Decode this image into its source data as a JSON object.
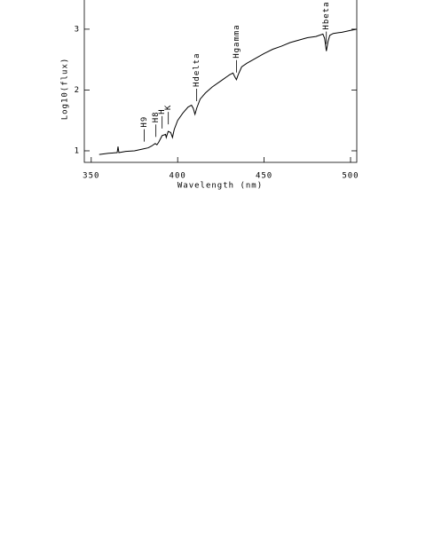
{
  "chart_data": {
    "type": "line",
    "xlabel": "Wavelength (nm)",
    "ylabel": "Log10(flux)",
    "x": [
      354.6,
      360,
      365,
      365.5,
      366,
      370,
      375,
      380,
      383,
      385,
      387,
      388,
      389,
      391,
      393,
      393.4,
      394.5,
      396,
      397,
      398,
      400,
      403,
      406,
      408,
      409,
      410,
      411,
      413,
      416,
      420,
      425,
      430,
      432,
      433,
      434,
      435,
      437,
      440,
      445,
      450,
      455,
      460,
      465,
      470,
      475,
      480,
      484,
      485,
      486,
      487,
      488,
      490,
      495,
      500,
      503.6
    ],
    "series": [
      {
        "color": "#000000",
        "values": [
          0.94,
          0.96,
          0.97,
          1.07,
          0.97,
          0.99,
          1.0,
          1.03,
          1.05,
          1.08,
          1.12,
          1.1,
          1.14,
          1.25,
          1.27,
          1.22,
          1.32,
          1.3,
          1.22,
          1.35,
          1.5,
          1.62,
          1.72,
          1.75,
          1.7,
          1.6,
          1.7,
          1.85,
          1.95,
          2.05,
          2.15,
          2.25,
          2.28,
          2.22,
          2.17,
          2.25,
          2.38,
          2.44,
          2.52,
          2.6,
          2.67,
          2.72,
          2.78,
          2.82,
          2.86,
          2.88,
          2.92,
          2.85,
          2.64,
          2.8,
          2.9,
          2.93,
          2.95,
          2.98,
          3.0
        ]
      }
    ],
    "annotations": [
      {
        "text": "H9",
        "x": 380.7
      },
      {
        "text": "H8",
        "x": 387.4
      },
      {
        "text": "H",
        "x": 391
      },
      {
        "text": "K",
        "x": 394.6
      },
      {
        "text": "Hdelta",
        "x": 411
      },
      {
        "text": "Hgamma",
        "x": 434
      },
      {
        "text": "Hbeta",
        "x": 486
      }
    ],
    "xlim": [
      346,
      503.6
    ],
    "ylim": [
      0.81,
      3.48
    ],
    "xticks": [
      350,
      400,
      450,
      500
    ],
    "yticks": [
      1,
      2,
      3
    ]
  }
}
